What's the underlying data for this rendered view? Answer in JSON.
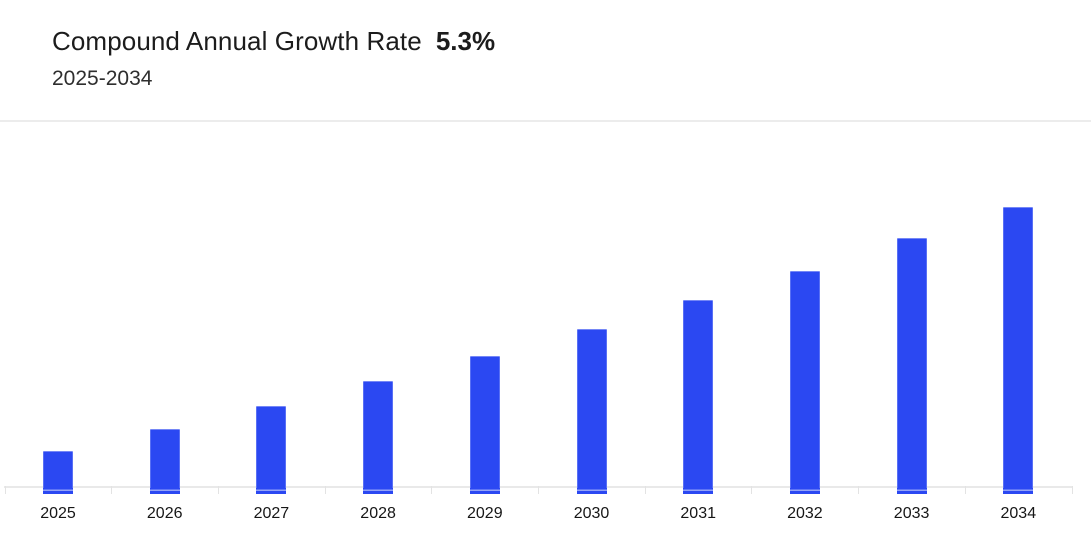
{
  "header": {
    "title": "Compound Annual Growth Rate",
    "cagr_value": "5.3%",
    "subtitle": "2025-2034"
  },
  "chart_data": {
    "type": "bar",
    "title": "Compound Annual Growth Rate",
    "cagr_label": "5.3%",
    "period": "2025-2034",
    "categories": [
      "2025",
      "2026",
      "2027",
      "2028",
      "2029",
      "2030",
      "2031",
      "2032",
      "2033",
      "2034"
    ],
    "series": [
      {
        "name": "annual value",
        "units": "relative bar height in screenshot px (chart shows no y-axis labels)",
        "values": [
          36,
          58,
          81,
          106,
          131,
          158,
          187,
          216,
          249,
          280
        ]
      }
    ],
    "normalized_to_2034_pct": [
      12.9,
      20.7,
      28.9,
      37.9,
      46.8,
      56.4,
      66.8,
      77.1,
      88.9,
      100
    ],
    "xlabel": "",
    "ylabel": "",
    "y_axis_shown": false,
    "gridlines": false,
    "legend": false,
    "bar_color": "#2b48f2",
    "bar_stub_stripe_color": "#93a2f8",
    "axis_line_color": "#e9e9e9",
    "tick_color": "#e3e3e3",
    "divider_color": "#ececec",
    "label_color": "#161616",
    "title_color": "#1c1c1c"
  }
}
